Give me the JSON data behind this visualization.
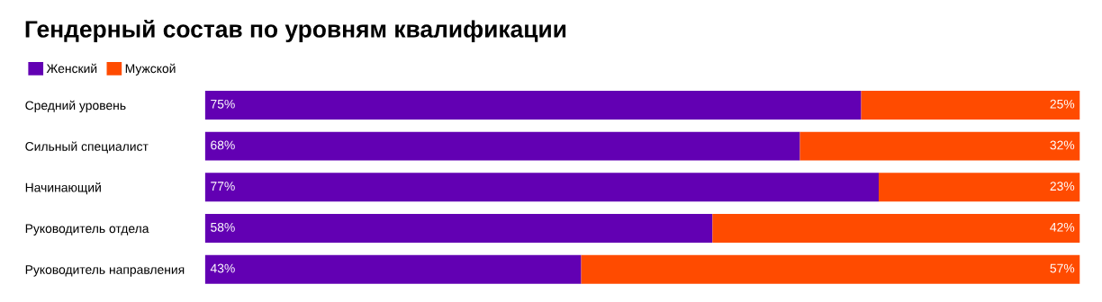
{
  "chart_data": {
    "type": "bar",
    "orientation": "horizontal",
    "stacked": true,
    "title": "Гендерный состав по уровням квалификации",
    "categories": [
      "Средний уровень",
      "Сильный специалист",
      "Начинающий",
      "Руководитель отдела",
      "Руководитель направления"
    ],
    "series": [
      {
        "name": "Женский",
        "color": "#6200b3",
        "values": [
          75,
          68,
          77,
          58,
          43
        ],
        "value_labels": [
          "75%",
          "68%",
          "77%",
          "58%",
          "43%"
        ]
      },
      {
        "name": "Мужской",
        "color": "#ff4b00",
        "values": [
          25,
          32,
          23,
          42,
          57
        ],
        "value_labels": [
          "25%",
          "32%",
          "23%",
          "42%",
          "57%"
        ]
      }
    ],
    "legend": "top left",
    "tick_labels": "y",
    "grid": false
  }
}
